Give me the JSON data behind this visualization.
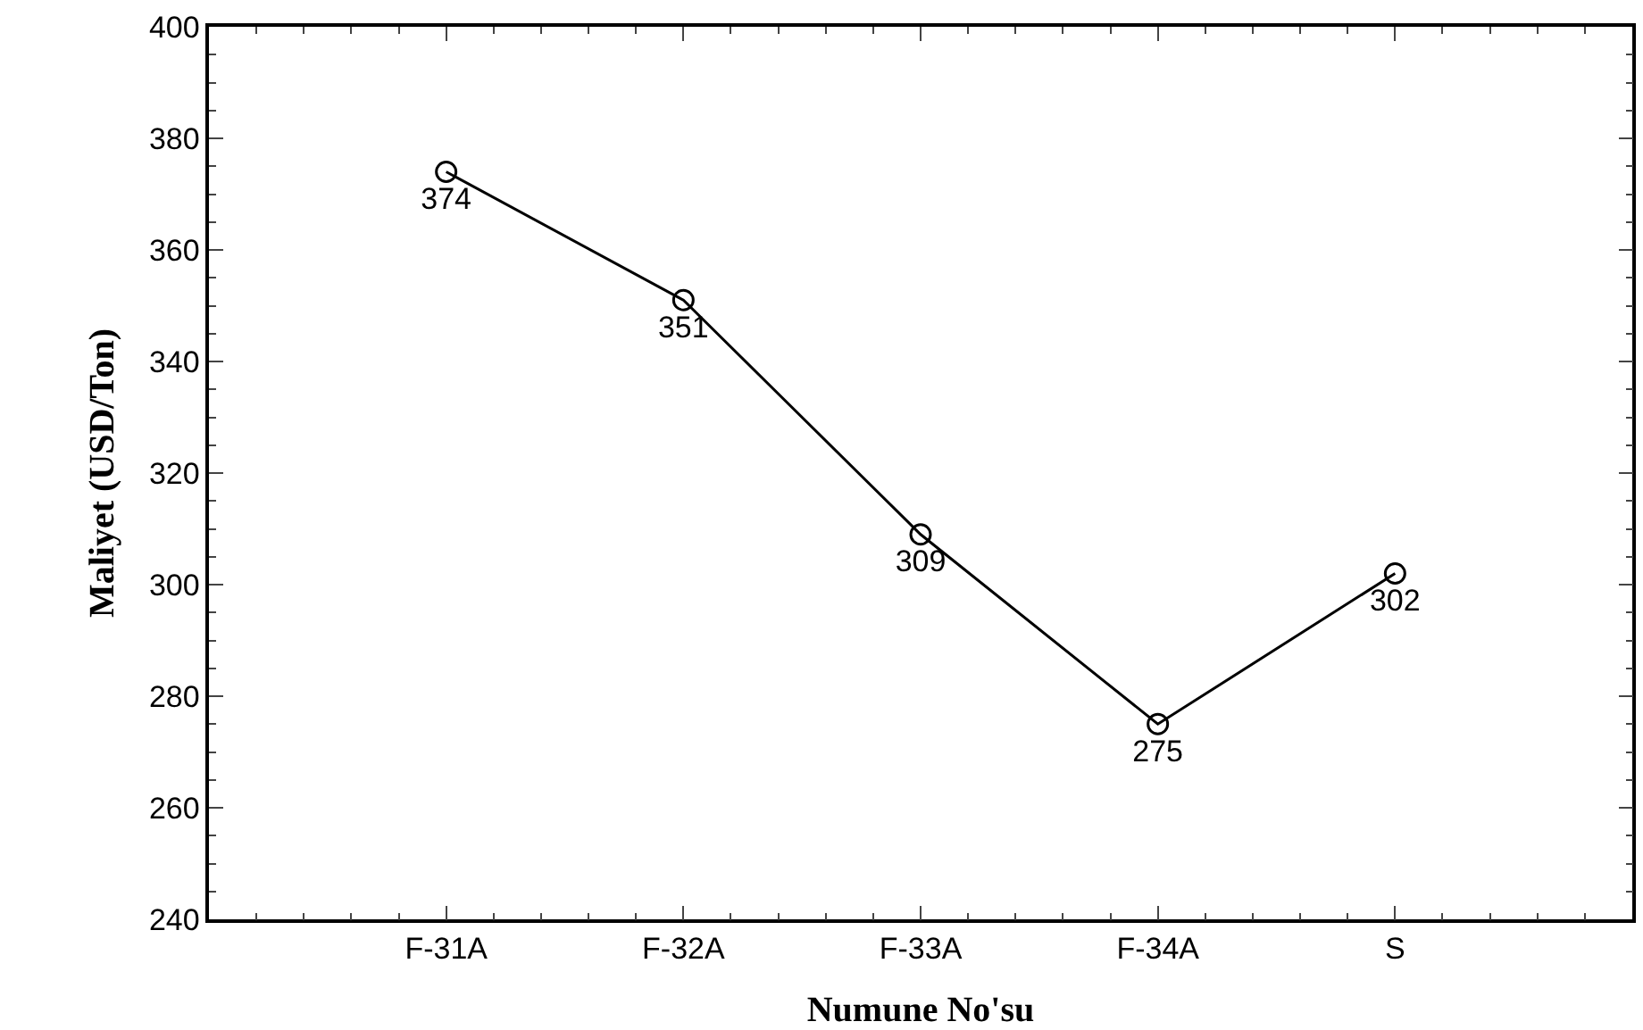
{
  "chart_data": {
    "type": "line",
    "xlabel": "Numune No'su",
    "ylabel": "Maliyet (USD/Ton)",
    "categories": [
      "F-31A",
      "F-32A",
      "F-33A",
      "F-34A",
      "S"
    ],
    "series": [
      {
        "color": "#000000",
        "values": [
          374,
          351,
          309,
          275,
          302
        ]
      }
    ],
    "ylim": [
      240,
      400
    ],
    "yticks": [
      240,
      260,
      280,
      300,
      320,
      340,
      360,
      380,
      400
    ],
    "data_labels": true,
    "marker": "circle",
    "line_style": "solid"
  }
}
